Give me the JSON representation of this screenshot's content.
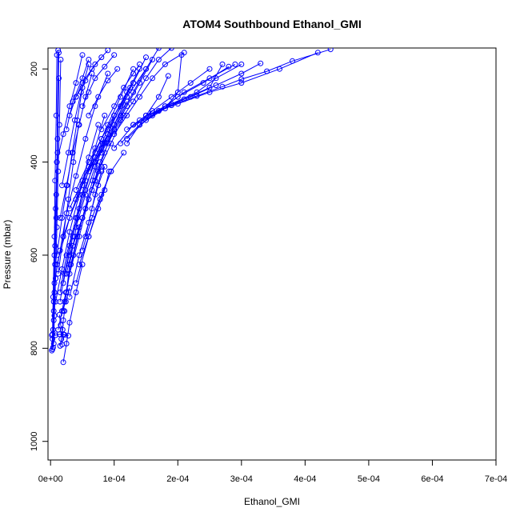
{
  "chart_data": {
    "type": "line",
    "title": "ATOM4 Southbound Ethanol_GMI",
    "xlabel": "Ethanol_GMI",
    "ylabel": "Pressure (mbar)",
    "xlim": [
      -4e-06,
      0.0007
    ],
    "ylim": [
      1040,
      155
    ],
    "y_axis_reversed": true,
    "x_ticks": [
      0,
      0.0001,
      0.0002,
      0.0003,
      0.0004,
      0.0005,
      0.0006,
      0.0007
    ],
    "x_tick_labels": [
      "0e+00",
      "1e-04",
      "2e-04",
      "3e-04",
      "4e-04",
      "5e-04",
      "6e-04",
      "7e-04"
    ],
    "y_ticks": [
      200,
      400,
      600,
      800,
      1000
    ],
    "y_tick_labels": [
      "200",
      "400",
      "600",
      "800",
      "1000"
    ],
    "marker": "open-circle",
    "color": "#0000ff",
    "grid": false,
    "legend": "none",
    "series": [
      {
        "x": [
          3e-06,
          4e-06,
          5e-06,
          6e-06,
          8e-06,
          1e-05,
          1.2e-05
        ],
        "y": [
          802,
          760,
          700,
          600,
          500,
          400,
          160
        ]
      },
      {
        "x": [
          4e-06,
          5e-06,
          6e-06,
          7e-06,
          9e-06,
          1.1e-05,
          1.3e-05
        ],
        "y": [
          798,
          740,
          680,
          580,
          470,
          350,
          165
        ]
      },
      {
        "x": [
          2e-06,
          3e-06,
          4e-06,
          6e-06,
          7e-06,
          9e-06,
          1e-05
        ],
        "y": [
          805,
          770,
          690,
          560,
          440,
          300,
          170
        ]
      },
      {
        "x": [
          5e-06,
          6e-06,
          8e-06,
          1e-05,
          1.2e-05,
          1.4e-05,
          1.6e-05
        ],
        "y": [
          790,
          730,
          650,
          540,
          420,
          320,
          180
        ]
      },
      {
        "x": [
          3e-06,
          5e-06,
          7e-06,
          9e-06,
          1.1e-05,
          1.3e-05
        ],
        "y": [
          780,
          720,
          620,
          520,
          380,
          220
        ]
      },
      {
        "x": [
          1.5e-05,
          1.7e-05,
          1.9e-05,
          2e-05,
          2.2e-05
        ],
        "y": [
          795,
          780,
          760,
          740,
          720
        ]
      },
      {
        "x": [
          1.8e-05,
          2e-05,
          1.6e-05,
          1.4e-05
        ],
        "y": [
          792,
          770,
          750,
          728
        ]
      },
      {
        "x": [
          2e-06,
          8e-06,
          1.4e-05,
          2.2e-05,
          2.8e-05
        ],
        "y": [
          772,
          772,
          770,
          771,
          773
        ]
      },
      {
        "x": [
          2e-05,
          2.5e-05,
          3e-05,
          3.8e-05,
          4.5e-05
        ],
        "y": [
          720,
          680,
          620,
          560,
          500
        ]
      },
      {
        "x": [
          1.5e-05,
          2.2e-05,
          3e-05,
          4.2e-05,
          5.5e-05,
          6.8e-05
        ],
        "y": [
          700,
          640,
          580,
          520,
          460,
          400
        ]
      },
      {
        "x": [
          2.5e-05,
          3.5e-05,
          5e-05,
          6.5e-05,
          8e-05
        ],
        "y": [
          640,
          580,
          520,
          460,
          410
        ]
      },
      {
        "x": [
          3e-05,
          4.5e-05,
          6e-05,
          7.5e-05,
          9.5e-05,
          0.000115
        ],
        "y": [
          600,
          540,
          480,
          420,
          360,
          300
        ]
      },
      {
        "x": [
          3.5e-05,
          5.5e-05,
          7e-05,
          8.5e-05,
          0.0001,
          0.00012
        ],
        "y": [
          580,
          500,
          440,
          380,
          320,
          260
        ]
      },
      {
        "x": [
          2e-05,
          4e-05,
          6e-05,
          8e-05,
          0.0001,
          0.00013
        ],
        "y": [
          560,
          480,
          410,
          350,
          300,
          230
        ]
      },
      {
        "x": [
          1e-05,
          3e-05,
          5e-05,
          7e-05,
          9e-05,
          0.00012,
          0.00015
        ],
        "y": [
          620,
          520,
          450,
          390,
          330,
          260,
          200
        ]
      },
      {
        "x": [
          2e-05,
          3.5e-05,
          5e-05,
          7e-05,
          9e-05,
          0.00011
        ],
        "y": [
          660,
          560,
          470,
          400,
          340,
          280
        ]
      },
      {
        "x": [
          4e-05,
          5.5e-05,
          7e-05,
          8.5e-05,
          0.0001,
          0.000125
        ],
        "y": [
          540,
          470,
          410,
          360,
          300,
          240
        ]
      },
      {
        "x": [
          1.5e-05,
          2.5e-05,
          4e-05,
          5.5e-05,
          7e-05,
          8.5e-05
        ],
        "y": [
          680,
          600,
          520,
          440,
          370,
          300
        ]
      },
      {
        "x": [
          8e-06,
          1.8e-05,
          3e-05,
          4.5e-05,
          6e-05,
          7.5e-05
        ],
        "y": [
          700,
          630,
          550,
          470,
          390,
          320
        ]
      },
      {
        "x": [
          1.2e-05,
          2.4e-05,
          3.6e-05,
          5e-05,
          6.6e-05,
          8.2e-05
        ],
        "y": [
          760,
          680,
          600,
          520,
          440,
          360
        ]
      },
      {
        "x": [
          2e-05,
          3e-05,
          4.5e-05,
          6e-05,
          7.8e-05,
          0.0001
        ],
        "y": [
          720,
          640,
          560,
          480,
          400,
          330
        ]
      },
      {
        "x": [
          6e-06,
          1.5e-05,
          2.5e-05,
          4e-05,
          5.5e-05,
          7e-05,
          9e-05
        ],
        "y": [
          660,
          590,
          510,
          430,
          350,
          280,
          210
        ]
      },
      {
        "x": [
          4e-05,
          6e-05,
          8e-05,
          0.0001,
          0.00012,
          0.00014
        ],
        "y": [
          460,
          400,
          350,
          300,
          250,
          200
        ]
      },
      {
        "x": [
          5e-05,
          7e-05,
          9e-05,
          0.00011,
          0.00013,
          0.00015
        ],
        "y": [
          440,
          390,
          340,
          280,
          230,
          175
        ]
      },
      {
        "x": [
          3e-05,
          5e-05,
          7e-05,
          9e-05,
          0.00011,
          0.00013
        ],
        "y": [
          500,
          440,
          380,
          320,
          260,
          200
        ]
      },
      {
        "x": [
          6e-05,
          8e-05,
          0.0001,
          0.00012
        ],
        "y": [
          420,
          370,
          320,
          270
        ]
      },
      {
        "x": [
          7e-05,
          9e-05,
          0.00011,
          0.00013,
          0.00015,
          0.00017
        ],
        "y": [
          400,
          350,
          300,
          250,
          200,
          155
        ]
      },
      {
        "x": [
          8e-05,
          0.0001,
          0.00012,
          0.00014,
          0.00016
        ],
        "y": [
          380,
          330,
          280,
          230,
          180
        ]
      },
      {
        "x": [
          9e-05,
          0.00011,
          0.00013,
          0.00015,
          0.00017,
          0.00019
        ],
        "y": [
          360,
          310,
          270,
          220,
          180,
          155
        ]
      },
      {
        "x": [
          0.0001,
          0.00012,
          0.00014,
          0.00016,
          0.00018,
          0.00021
        ],
        "y": [
          340,
          300,
          260,
          220,
          190,
          165
        ]
      },
      {
        "x": [
          0.0001,
          0.00013,
          0.00016,
          0.00019,
          0.00022,
          0.00025
        ],
        "y": [
          370,
          320,
          290,
          260,
          230,
          200
        ]
      },
      {
        "x": [
          0.00011,
          0.00014,
          0.00017,
          0.0002,
          0.00024,
          0.00028
        ],
        "y": [
          360,
          320,
          290,
          260,
          230,
          195
        ]
      },
      {
        "x": [
          0.00012,
          0.00015,
          0.00018,
          0.00021,
          0.00025,
          0.00029
        ],
        "y": [
          350,
          310,
          280,
          250,
          220,
          190
        ]
      },
      {
        "x": [
          0.00012,
          0.00016,
          0.00019,
          0.00023,
          0.00026,
          0.0003
        ],
        "y": [
          330,
          300,
          275,
          250,
          220,
          190
        ]
      },
      {
        "x": [
          0.00013,
          0.00017,
          0.00021,
          0.00025,
          0.00027
        ],
        "y": [
          320,
          290,
          265,
          240,
          190
        ]
      },
      {
        "x": [
          0.00014,
          0.00018,
          0.00022,
          0.00026,
          0.0003,
          0.00033
        ],
        "y": [
          310,
          280,
          260,
          235,
          210,
          188
        ]
      },
      {
        "x": [
          0.00015,
          0.00019,
          0.00023,
          0.00027,
          0.0003,
          0.00034,
          0.00038,
          0.00044
        ],
        "y": [
          300,
          278,
          258,
          238,
          222,
          205,
          183,
          158
        ]
      },
      {
        "x": [
          0.00016,
          0.0002,
          0.00025,
          0.0003,
          0.00036,
          0.00042
        ],
        "y": [
          295,
          275,
          250,
          230,
          200,
          165
        ]
      },
      {
        "x": [
          0.00014,
          0.00018,
          0.0002,
          0.000206
        ],
        "y": [
          320,
          285,
          250,
          170
        ]
      },
      {
        "x": [
          0.00012,
          0.00015,
          0.00017,
          0.000185
        ],
        "y": [
          360,
          300,
          260,
          215
        ]
      },
      {
        "x": [
          8e-05,
          0.0001,
          0.000115,
          0.00013,
          0.00014
        ],
        "y": [
          330,
          280,
          240,
          210,
          190
        ]
      },
      {
        "x": [
          6e-05,
          7.5e-05,
          9e-05,
          0.000105
        ],
        "y": [
          300,
          260,
          225,
          200
        ]
      },
      {
        "x": [
          5e-05,
          6e-05,
          7e-05,
          8.5e-05,
          0.0001
        ],
        "y": [
          280,
          250,
          220,
          195,
          170
        ]
      },
      {
        "x": [
          4e-05,
          5e-05,
          6.5e-05,
          8e-05
        ],
        "y": [
          260,
          230,
          200,
          175
        ]
      },
      {
        "x": [
          3e-05,
          4e-05,
          5.5e-05,
          7e-05,
          9e-05
        ],
        "y": [
          300,
          260,
          225,
          190,
          160
        ]
      },
      {
        "x": [
          2.5e-05,
          3.5e-05,
          5e-05,
          6e-05
        ],
        "y": [
          330,
          270,
          220,
          180
        ]
      },
      {
        "x": [
          1e-05,
          2e-05,
          3e-05,
          4e-05,
          5e-05
        ],
        "y": [
          400,
          340,
          280,
          230,
          170
        ]
      },
      {
        "x": [
          1.8e-05,
          2.8e-05,
          3.8e-05,
          4.8e-05,
          6e-05
        ],
        "y": [
          450,
          380,
          310,
          250,
          190
        ]
      },
      {
        "x": [
          1.5e-05,
          2.5e-05,
          3.5e-05,
          4.5e-05,
          5.5e-05,
          6.5e-05
        ],
        "y": [
          520,
          450,
          380,
          320,
          260,
          210
        ]
      },
      {
        "x": [
          1e-05,
          1.8e-05,
          2.6e-05,
          3.4e-05,
          4.2e-05,
          5e-05
        ],
        "y": [
          600,
          520,
          450,
          380,
          310,
          240
        ]
      },
      {
        "x": [
          1.2e-05,
          2e-05,
          2.8e-05,
          3.6e-05,
          4.4e-05
        ],
        "y": [
          640,
          560,
          480,
          400,
          320
        ]
      },
      {
        "x": [
          1.8e-05,
          2.4e-05,
          3e-05
        ],
        "y": [
          720,
          700,
          670
        ]
      },
      {
        "x": [
          2e-05,
          2.5e-05,
          3e-05,
          4e-05,
          5e-05
        ],
        "y": [
          830,
          790,
          745,
          680,
          620
        ]
      },
      {
        "x": [
          4.5e-05,
          6e-05,
          7.5e-05,
          8.5e-05,
          9.2e-05
        ],
        "y": [
          620,
          560,
          500,
          460,
          420
        ]
      },
      {
        "x": [
          5e-05,
          6.5e-05,
          8e-05,
          9.5e-05,
          0.000115
        ],
        "y": [
          590,
          520,
          470,
          420,
          380
        ]
      },
      {
        "x": [
          4e-05,
          6e-05,
          7.8e-05,
          9.5e-05
        ],
        "y": [
          660,
          560,
          480,
          420
        ]
      },
      {
        "x": [
          3e-05,
          4.5e-05,
          6e-05,
          7e-05,
          8e-05
        ],
        "y": [
          690,
          600,
          530,
          470,
          420
        ]
      },
      {
        "x": [
          2.2e-05,
          3.2e-05,
          4.2e-05,
          5.5e-05,
          7e-05
        ],
        "y": [
          700,
          620,
          560,
          500,
          440
        ]
      },
      {
        "x": [
          5.5e-05,
          6.5e-05,
          7.5e-05,
          8.5e-05
        ],
        "y": [
          560,
          500,
          450,
          410
        ]
      }
    ]
  }
}
